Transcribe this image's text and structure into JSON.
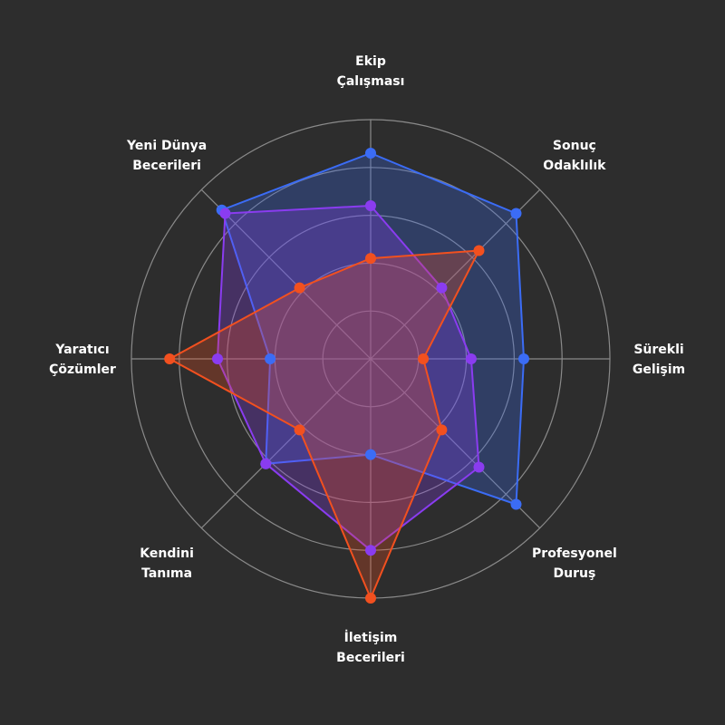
{
  "chart_data": {
    "type": "radar",
    "axes": [
      [
        "Ekip",
        "Çalışması"
      ],
      [
        "Sonuç",
        "Odaklılık"
      ],
      [
        "Sürekli",
        "Gelişim"
      ],
      [
        "Profesyonel",
        "Duruş"
      ],
      [
        "İletişim",
        "Becerileri"
      ],
      [
        "Kendini",
        "Tanıma"
      ],
      [
        "Yaratıcı",
        "Çözümler"
      ],
      [
        "Yeni Dünya",
        "Becerileri"
      ]
    ],
    "rmax": 5,
    "rings": 5,
    "series": [
      {
        "color": "#3b6cf5",
        "values": [
          4.3,
          4.3,
          3.2,
          4.3,
          2.0,
          3.1,
          2.1,
          4.4
        ]
      },
      {
        "color": "#8a3cf0",
        "values": [
          3.2,
          2.1,
          2.1,
          3.2,
          4.0,
          3.1,
          3.2,
          4.3
        ]
      },
      {
        "color": "#f2501f",
        "values": [
          2.1,
          3.2,
          1.1,
          2.1,
          5.0,
          2.1,
          4.2,
          2.1
        ]
      }
    ]
  },
  "colors": {
    "background": "#2d2d2d",
    "grid": "#8a8a8a",
    "label": "#ffffff"
  }
}
